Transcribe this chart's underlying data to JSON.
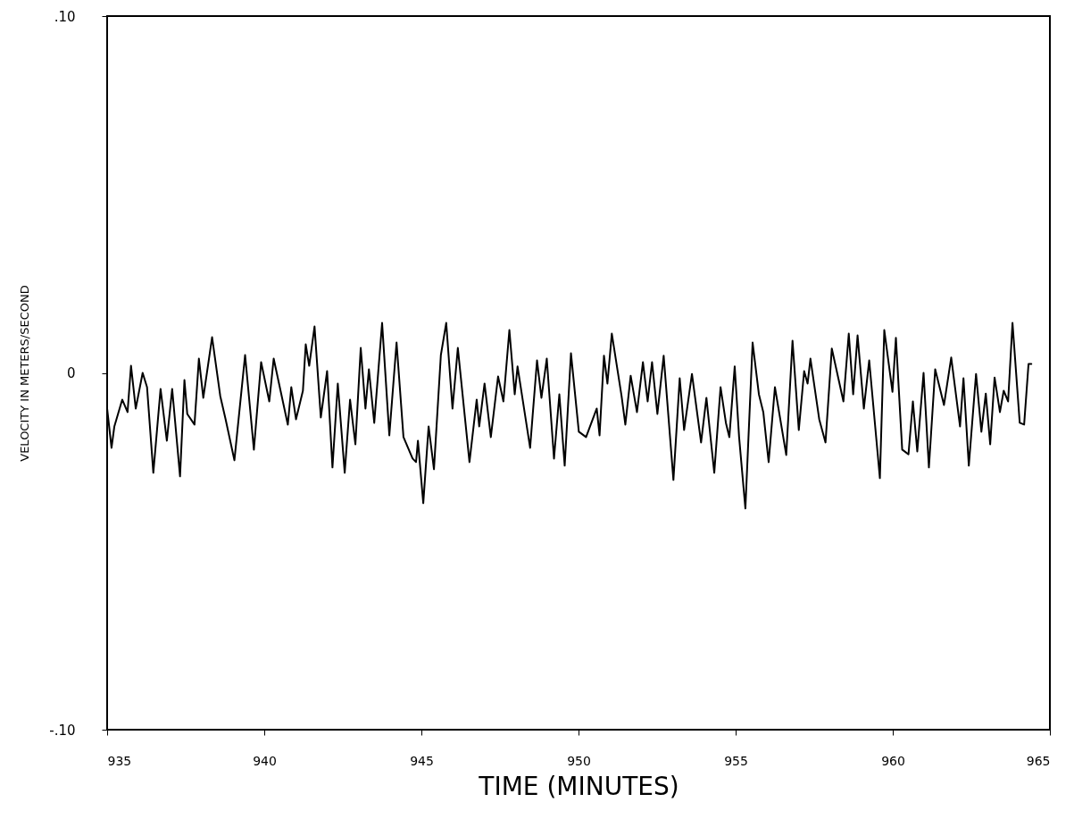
{
  "chart_data": {
    "type": "line",
    "xlabel": "TIME (MINUTES)",
    "ylabel": "VELOCITY IN METERS/SECOND",
    "xlim": [
      935,
      965
    ],
    "xticks": [
      935,
      940,
      945,
      950,
      955,
      960,
      965
    ],
    "ylim": [
      -0.1,
      0.1
    ],
    "yticks": [
      {
        "value": -0.1,
        "label": "-.10"
      },
      0,
      {
        "value": 0.1,
        "label": ".10"
      }
    ],
    "x": [
      935.0,
      935.14,
      935.23,
      935.48,
      935.65,
      935.76,
      935.91,
      936.13,
      936.27,
      936.47,
      936.7,
      936.9,
      937.07,
      937.32,
      937.46,
      937.55,
      937.78,
      937.92,
      938.06,
      938.34,
      938.6,
      938.77,
      939.05,
      939.39,
      939.67,
      939.9,
      940.16,
      940.3,
      940.47,
      940.75,
      940.86,
      941.01,
      941.23,
      941.32,
      941.43,
      941.6,
      941.8,
      942.0,
      942.17,
      942.34,
      942.56,
      942.73,
      942.9,
      943.07,
      943.22,
      943.33,
      943.5,
      943.75,
      943.98,
      944.21,
      944.43,
      944.72,
      944.83,
      944.89,
      945.06,
      945.23,
      945.4,
      945.62,
      945.79,
      945.99,
      946.16,
      946.53,
      946.76,
      946.84,
      947.01,
      947.21,
      947.44,
      947.61,
      947.8,
      947.97,
      948.06,
      948.46,
      948.54,
      948.68,
      948.82,
      948.99,
      949.22,
      949.39,
      949.56,
      949.76,
      950.01,
      950.24,
      950.58,
      950.67,
      950.81,
      950.92,
      951.06,
      951.37,
      951.49,
      951.66,
      951.86,
      952.05,
      952.2,
      952.34,
      952.51,
      952.71,
      953.02,
      953.22,
      953.36,
      953.61,
      953.9,
      954.07,
      954.32,
      954.52,
      954.69,
      954.8,
      954.97,
      955.11,
      955.31,
      955.54,
      955.74,
      955.88,
      956.05,
      956.25,
      956.61,
      956.81,
      957.01,
      957.18,
      957.29,
      957.38,
      957.66,
      957.86,
      958.06,
      958.43,
      958.6,
      958.74,
      958.88,
      959.08,
      959.25,
      959.59,
      959.73,
      959.99,
      960.1,
      960.3,
      960.5,
      960.64,
      960.78,
      960.98,
      961.15,
      961.35,
      961.63,
      961.86,
      962.14,
      962.25,
      962.42,
      962.65,
      962.82,
      962.96,
      963.1,
      963.24,
      963.41,
      963.53,
      963.67,
      963.81,
      964.04,
      964.18,
      964.32,
      964.41
    ],
    "series": [
      {
        "color": "#000000",
        "values": [
          -0.01,
          -0.021,
          -0.015,
          -0.0075,
          -0.011,
          0.002,
          -0.01,
          0.0,
          -0.004,
          -0.028,
          -0.0045,
          -0.019,
          -0.0045,
          -0.029,
          -0.002,
          -0.0115,
          -0.0145,
          0.004,
          -0.007,
          0.01,
          -0.0065,
          -0.013,
          -0.0245,
          0.005,
          -0.0215,
          0.003,
          -0.008,
          0.004,
          -0.003,
          -0.0145,
          -0.004,
          -0.013,
          -0.005,
          0.008,
          0.002,
          0.013,
          -0.0125,
          0.0005,
          -0.0265,
          -0.003,
          -0.028,
          -0.0075,
          -0.02,
          0.007,
          -0.01,
          0.001,
          -0.014,
          0.014,
          -0.0175,
          0.0085,
          -0.018,
          -0.024,
          -0.025,
          -0.019,
          -0.0365,
          -0.015,
          -0.027,
          0.005,
          0.014,
          -0.01,
          0.007,
          -0.025,
          -0.0075,
          -0.015,
          -0.003,
          -0.018,
          -0.001,
          -0.008,
          0.012,
          -0.006,
          0.0018,
          -0.021,
          -0.012,
          0.0035,
          -0.007,
          0.004,
          -0.024,
          -0.006,
          -0.026,
          0.0055,
          -0.0165,
          -0.018,
          -0.01,
          -0.0175,
          0.0048,
          -0.003,
          0.011,
          -0.0065,
          -0.0145,
          -0.0008,
          -0.011,
          0.003,
          -0.008,
          0.003,
          -0.0115,
          0.0048,
          -0.03,
          -0.0015,
          -0.016,
          -0.0003,
          -0.0195,
          -0.007,
          -0.028,
          -0.004,
          -0.014,
          -0.018,
          0.0018,
          -0.018,
          -0.038,
          0.0085,
          -0.006,
          -0.011,
          -0.025,
          -0.004,
          -0.023,
          0.009,
          -0.016,
          0.0005,
          -0.003,
          0.004,
          -0.013,
          -0.0195,
          0.0068,
          -0.008,
          0.011,
          -0.006,
          0.0105,
          -0.01,
          0.0035,
          -0.0295,
          0.012,
          -0.0053,
          0.0098,
          -0.0215,
          -0.0228,
          -0.008,
          -0.022,
          0.0,
          -0.0265,
          0.001,
          -0.009,
          0.0043,
          -0.015,
          -0.0015,
          -0.026,
          -0.0003,
          -0.0165,
          -0.0058,
          -0.02,
          -0.0013,
          -0.011,
          -0.005,
          -0.008,
          0.014,
          -0.014,
          -0.0145,
          0.0025,
          0.0025
        ]
      }
    ]
  }
}
